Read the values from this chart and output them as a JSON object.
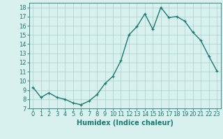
{
  "x": [
    0,
    1,
    2,
    3,
    4,
    5,
    6,
    7,
    8,
    9,
    10,
    11,
    12,
    13,
    14,
    15,
    16,
    17,
    18,
    19,
    20,
    21,
    22,
    23
  ],
  "y": [
    9.3,
    8.2,
    8.7,
    8.2,
    8.0,
    7.6,
    7.4,
    7.8,
    8.5,
    9.7,
    10.5,
    12.2,
    15.0,
    15.9,
    17.3,
    15.6,
    18.0,
    16.9,
    17.0,
    16.5,
    15.3,
    14.4,
    12.7,
    11.1
  ],
  "line_color": "#1a7a6e",
  "marker": "+",
  "markersize": 3.5,
  "linewidth": 1.0,
  "xlabel": "Humidex (Indice chaleur)",
  "xlim": [
    -0.5,
    23.5
  ],
  "ylim": [
    7,
    18.5
  ],
  "yticks": [
    7,
    8,
    9,
    10,
    11,
    12,
    13,
    14,
    15,
    16,
    17,
    18
  ],
  "xticks": [
    0,
    1,
    2,
    3,
    4,
    5,
    6,
    7,
    8,
    9,
    10,
    11,
    12,
    13,
    14,
    15,
    16,
    17,
    18,
    19,
    20,
    21,
    22,
    23
  ],
  "bg_color": "#d8f0ee",
  "grid_color": "#aacfcc",
  "font_color": "#1a7a6e",
  "xlabel_fontsize": 7,
  "tick_fontsize": 6
}
